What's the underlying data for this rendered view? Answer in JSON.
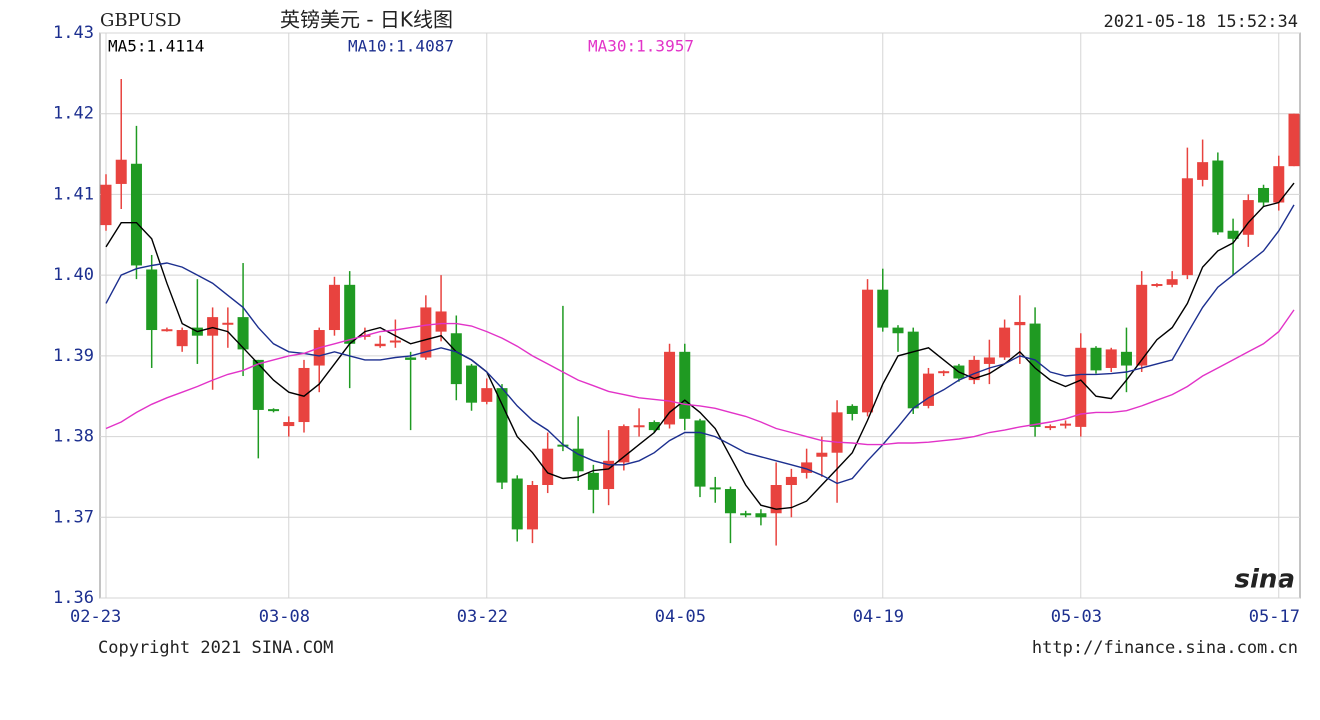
{
  "chart_data": {
    "type": "candlestick",
    "symbol": "GBPUSD",
    "title": "英镑美元 - 日K线图",
    "timestamp": "2021-05-18 15:52:34",
    "copyright": "Copyright 2021 SINA.COM",
    "url": "http://finance.sina.com.cn",
    "logo": "sina",
    "up_color": "#e8433f",
    "down_color": "#1f9a22",
    "grid": true,
    "ylim": [
      1.36,
      1.43
    ],
    "yticks": [
      1.36,
      1.37,
      1.38,
      1.39,
      {
        "value": 1.4,
        "label": "1.40"
      },
      1.41,
      1.42,
      1.43
    ],
    "categories": [
      "02-23",
      null,
      null,
      null,
      null,
      null,
      null,
      null,
      null,
      null,
      null,
      null,
      "03-08",
      null,
      null,
      null,
      null,
      null,
      null,
      null,
      null,
      null,
      null,
      null,
      null,
      "03-22",
      null,
      null,
      null,
      null,
      null,
      null,
      null,
      null,
      null,
      null,
      null,
      null,
      "04-05",
      null,
      null,
      null,
      null,
      null,
      null,
      null,
      null,
      null,
      null,
      null,
      null,
      "04-19",
      null,
      null,
      null,
      null,
      null,
      null,
      null,
      null,
      null,
      null,
      null,
      null,
      "05-03",
      null,
      null,
      null,
      null,
      null,
      null,
      null,
      null,
      null,
      null,
      null,
      null,
      "05-17",
      null
    ],
    "open": [
      1.4062,
      1.4113,
      1.4138,
      1.4007,
      1.3932,
      1.3912,
      1.3935,
      1.3925,
      1.394,
      1.3948,
      1.3895,
      1.3834,
      1.3813,
      1.3818,
      1.3888,
      1.3932,
      1.3988,
      1.3925,
      1.3912,
      1.3918,
      1.3898,
      1.3898,
      1.393,
      1.3928,
      1.3888,
      1.3843,
      1.386,
      1.3748,
      1.3685,
      1.374,
      1.379,
      1.3785,
      1.3755,
      1.3735,
      1.3768,
      1.3813,
      1.3818,
      1.3815,
      1.3905,
      1.382,
      1.3737,
      1.3735,
      1.3705,
      1.3705,
      1.3705,
      1.374,
      1.3755,
      1.3775,
      1.378,
      1.3838,
      1.383,
      1.3982,
      1.3935,
      1.393,
      1.3838,
      1.388,
      1.3888,
      1.387,
      1.389,
      1.3898,
      1.3938,
      1.394,
      1.3812,
      1.3815,
      1.3812,
      1.391,
      1.3885,
      1.3905,
      1.3888,
      1.3988,
      1.3988,
      1.4,
      1.4118,
      1.4142,
      1.4055,
      1.405,
      1.4108,
      1.409,
      1.4135
    ],
    "high": [
      1.4125,
      1.4243,
      1.4185,
      1.4025,
      1.3935,
      1.3935,
      1.3995,
      1.396,
      1.396,
      1.4015,
      1.3895,
      1.3835,
      1.3825,
      1.3895,
      1.3935,
      1.3998,
      1.4005,
      1.3935,
      1.3925,
      1.3945,
      1.3905,
      1.3975,
      1.4,
      1.395,
      1.389,
      1.3872,
      1.3865,
      1.3752,
      1.3745,
      1.3805,
      1.3962,
      1.3825,
      1.3765,
      1.3808,
      1.3815,
      1.3835,
      1.382,
      1.3915,
      1.3915,
      1.3822,
      1.375,
      1.3738,
      1.3708,
      1.371,
      1.3768,
      1.376,
      1.3785,
      1.38,
      1.3845,
      1.384,
      1.3995,
      1.4008,
      1.3938,
      1.3935,
      1.3885,
      1.3882,
      1.389,
      1.39,
      1.392,
      1.3945,
      1.3975,
      1.396,
      1.3815,
      1.382,
      1.3928,
      1.3912,
      1.391,
      1.3935,
      1.4005,
      1.399,
      1.4005,
      1.4158,
      1.4168,
      1.4152,
      1.407,
      1.41,
      1.4112,
      1.4148,
      1.42
    ],
    "low": [
      1.4055,
      1.4082,
      1.3995,
      1.3885,
      1.393,
      1.3905,
      1.389,
      1.3858,
      1.391,
      1.3875,
      1.3773,
      1.383,
      1.38,
      1.3805,
      1.3855,
      1.3925,
      1.386,
      1.392,
      1.391,
      1.391,
      1.3808,
      1.3895,
      1.3918,
      1.3845,
      1.3832,
      1.384,
      1.3735,
      1.367,
      1.3668,
      1.373,
      1.3782,
      1.3745,
      1.3705,
      1.3715,
      1.3758,
      1.38,
      1.3805,
      1.381,
      1.3808,
      1.3725,
      1.3718,
      1.3668,
      1.37,
      1.369,
      1.3665,
      1.37,
      1.3748,
      1.375,
      1.3718,
      1.382,
      1.3825,
      1.393,
      1.3905,
      1.3828,
      1.3835,
      1.3875,
      1.3868,
      1.3865,
      1.3865,
      1.3895,
      1.389,
      1.38,
      1.3808,
      1.381,
      1.38,
      1.3878,
      1.388,
      1.3855,
      1.388,
      1.3985,
      1.3985,
      1.3995,
      1.411,
      1.405,
      1.4,
      1.4035,
      1.4085,
      1.408,
      1.4135
    ],
    "close": [
      1.4112,
      1.4143,
      1.4012,
      1.3932,
      1.3933,
      1.3932,
      1.3925,
      1.3948,
      1.3941,
      1.3908,
      1.3833,
      1.3833,
      1.3818,
      1.3885,
      1.3932,
      1.3988,
      1.3915,
      1.3926,
      1.3915,
      1.3919,
      1.3895,
      1.396,
      1.3955,
      1.3865,
      1.3842,
      1.386,
      1.3743,
      1.3685,
      1.374,
      1.3785,
      1.3789,
      1.3757,
      1.3734,
      1.377,
      1.3813,
      1.3814,
      1.3808,
      1.3905,
      1.3822,
      1.3738,
      1.3735,
      1.3705,
      1.3704,
      1.37,
      1.374,
      1.375,
      1.3768,
      1.378,
      1.383,
      1.3828,
      1.3982,
      1.3935,
      1.3928,
      1.3835,
      1.3878,
      1.3881,
      1.3872,
      1.3895,
      1.3898,
      1.3935,
      1.3942,
      1.3812,
      1.3813,
      1.3816,
      1.391,
      1.3882,
      1.3908,
      1.3888,
      1.3988,
      1.3989,
      1.3995,
      1.412,
      1.414,
      1.4053,
      1.4045,
      1.4093,
      1.409,
      1.4135,
      1.42
    ],
    "series": [
      {
        "name": "MA5:1.4114",
        "color": "#000000",
        "values": [
          1.4035,
          1.4065,
          1.4065,
          1.4045,
          1.399,
          1.394,
          1.393,
          1.3935,
          1.393,
          1.391,
          1.389,
          1.387,
          1.3855,
          1.385,
          1.3865,
          1.389,
          1.3915,
          1.393,
          1.3935,
          1.3925,
          1.3915,
          1.392,
          1.3925,
          1.3905,
          1.3895,
          1.388,
          1.384,
          1.38,
          1.378,
          1.3755,
          1.3748,
          1.375,
          1.3758,
          1.376,
          1.3775,
          1.379,
          1.3805,
          1.383,
          1.3845,
          1.383,
          1.381,
          1.3775,
          1.374,
          1.3715,
          1.371,
          1.3712,
          1.372,
          1.374,
          1.376,
          1.378,
          1.382,
          1.3865,
          1.39,
          1.3905,
          1.391,
          1.3895,
          1.388,
          1.3872,
          1.3878,
          1.389,
          1.3905,
          1.3885,
          1.387,
          1.3862,
          1.387,
          1.385,
          1.3847,
          1.387,
          1.3895,
          1.392,
          1.3935,
          1.3965,
          1.401,
          1.403,
          1.404,
          1.4065,
          1.4085,
          1.409,
          1.4114
        ]
      },
      {
        "name": "MA10:1.4087",
        "color": "#1c2f8f",
        "values": [
          1.3965,
          1.4,
          1.4008,
          1.4012,
          1.4015,
          1.401,
          1.4,
          1.399,
          1.3975,
          1.396,
          1.3935,
          1.3915,
          1.3905,
          1.3903,
          1.39,
          1.3905,
          1.39,
          1.3895,
          1.3895,
          1.3898,
          1.39,
          1.3905,
          1.391,
          1.3905,
          1.3895,
          1.388,
          1.386,
          1.3838,
          1.382,
          1.3808,
          1.379,
          1.3778,
          1.377,
          1.3765,
          1.3765,
          1.377,
          1.378,
          1.3795,
          1.3805,
          1.3805,
          1.38,
          1.379,
          1.378,
          1.3775,
          1.377,
          1.3765,
          1.376,
          1.3752,
          1.3742,
          1.3748,
          1.377,
          1.379,
          1.3812,
          1.3835,
          1.3848,
          1.3858,
          1.387,
          1.3878,
          1.3885,
          1.389,
          1.39,
          1.3895,
          1.388,
          1.3875,
          1.3877,
          1.3877,
          1.3878,
          1.388,
          1.3885,
          1.389,
          1.3895,
          1.3928,
          1.396,
          1.3985,
          1.4,
          1.4015,
          1.403,
          1.4055,
          1.4087
        ]
      },
      {
        "name": "MA30:1.3957",
        "color": "#e233c8",
        "values": [
          1.381,
          1.3818,
          1.383,
          1.384,
          1.3848,
          1.3855,
          1.3862,
          1.387,
          1.3877,
          1.3882,
          1.389,
          1.3895,
          1.39,
          1.3903,
          1.391,
          1.3915,
          1.392,
          1.3925,
          1.393,
          1.3932,
          1.3935,
          1.3938,
          1.394,
          1.394,
          1.3937,
          1.393,
          1.3922,
          1.3912,
          1.39,
          1.389,
          1.388,
          1.387,
          1.3863,
          1.3856,
          1.3852,
          1.3848,
          1.3846,
          1.3844,
          1.384,
          1.3838,
          1.3835,
          1.383,
          1.3825,
          1.3818,
          1.381,
          1.3805,
          1.38,
          1.3795,
          1.3793,
          1.3792,
          1.379,
          1.379,
          1.3792,
          1.3792,
          1.3793,
          1.3795,
          1.3797,
          1.38,
          1.3805,
          1.3808,
          1.3812,
          1.3815,
          1.3818,
          1.3822,
          1.3828,
          1.383,
          1.383,
          1.3832,
          1.3838,
          1.3845,
          1.3852,
          1.3862,
          1.3875,
          1.3885,
          1.3895,
          1.3905,
          1.3915,
          1.393,
          1.3957
        ]
      }
    ]
  }
}
